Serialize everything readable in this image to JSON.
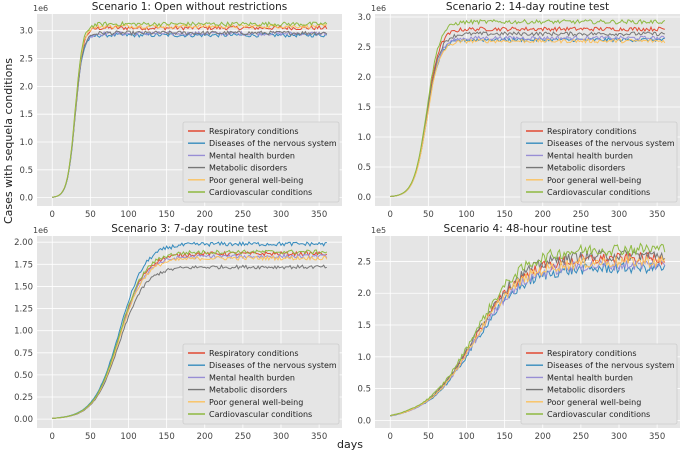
{
  "figure": {
    "ylabel": "Cases with sequela conditions",
    "xlabel": "days"
  },
  "colors": {
    "Respiratory conditions": "#e24a33",
    "Diseases of the nervous system": "#348abd",
    "Mental health burden": "#988ed5",
    "Metabolic disorders": "#777777",
    "Poor general well-being": "#fbc15e",
    "Cardiovascular conditions": "#8eba42"
  },
  "chart_data": [
    {
      "type": "line",
      "title": "Scenario 1: Open without restrictions",
      "exponent": "1e6",
      "x_range": [
        0,
        360
      ],
      "xticks": [
        0,
        50,
        100,
        150,
        200,
        250,
        300,
        350
      ],
      "yticks": [
        0.0,
        0.5,
        1.0,
        1.5,
        2.0,
        2.5,
        3.0
      ],
      "ytick_labels": [
        "0.0",
        "0.5",
        "1.0",
        "1.5",
        "2.0",
        "2.5",
        "3.0"
      ],
      "ylim": [
        -0.15,
        3.3
      ],
      "legend_position": "lower-right",
      "curve": {
        "midpoint_day": 30,
        "growth_rate": 0.2,
        "noise": 0.012
      },
      "series": [
        {
          "name": "Respiratory conditions",
          "plateau": 3.05
        },
        {
          "name": "Diseases of the nervous system",
          "plateau": 2.92
        },
        {
          "name": "Mental health burden",
          "plateau": 2.95
        },
        {
          "name": "Metabolic disorders",
          "plateau": 2.96
        },
        {
          "name": "Poor general well-being",
          "plateau": 3.08
        },
        {
          "name": "Cardiovascular conditions",
          "plateau": 3.12
        }
      ]
    },
    {
      "type": "line",
      "title": "Scenario 2: 14-day routine test",
      "exponent": "1e6",
      "x_range": [
        0,
        360
      ],
      "xticks": [
        0,
        50,
        100,
        150,
        200,
        250,
        300,
        350
      ],
      "yticks": [
        0.0,
        0.5,
        1.0,
        1.5,
        2.0,
        2.5,
        3.0
      ],
      "ytick_labels": [
        "0.0",
        "0.5",
        "1.0",
        "1.5",
        "2.0",
        "2.5",
        "3.0"
      ],
      "ylim": [
        -0.15,
        3.05
      ],
      "legend_position": "lower-right",
      "curve": {
        "midpoint_day": 48,
        "growth_rate": 0.12,
        "noise": 0.012
      },
      "series": [
        {
          "name": "Respiratory conditions",
          "plateau": 2.8
        },
        {
          "name": "Diseases of the nervous system",
          "plateau": 2.62
        },
        {
          "name": "Mental health burden",
          "plateau": 2.65
        },
        {
          "name": "Metabolic disorders",
          "plateau": 2.72
        },
        {
          "name": "Poor general well-being",
          "plateau": 2.6
        },
        {
          "name": "Cardiovascular conditions",
          "plateau": 2.92
        }
      ]
    },
    {
      "type": "line",
      "title": "Scenario 3: 7-day routine test",
      "exponent": "1e6",
      "x_range": [
        0,
        360
      ],
      "xticks": [
        0,
        50,
        100,
        150,
        200,
        250,
        300,
        350
      ],
      "yticks": [
        0.0,
        0.25,
        0.5,
        0.75,
        1.0,
        1.25,
        1.5,
        1.75,
        2.0
      ],
      "ytick_labels": [
        "0.00",
        "0.25",
        "0.50",
        "0.75",
        "1.00",
        "1.25",
        "1.50",
        "1.75",
        "2.00"
      ],
      "ylim": [
        -0.1,
        2.07
      ],
      "legend_position": "lower-right",
      "curve": {
        "midpoint_day": 88,
        "growth_rate": 0.06,
        "noise": 0.012
      },
      "series": [
        {
          "name": "Respiratory conditions",
          "plateau": 1.87
        },
        {
          "name": "Diseases of the nervous system",
          "plateau": 1.98
        },
        {
          "name": "Mental health burden",
          "plateau": 1.84
        },
        {
          "name": "Metabolic disorders",
          "plateau": 1.72
        },
        {
          "name": "Poor general well-being",
          "plateau": 1.82
        },
        {
          "name": "Cardiovascular conditions",
          "plateau": 1.89
        }
      ]
    },
    {
      "type": "line",
      "title": "Scenario 4: 48-hour routine test",
      "exponent": "1e5",
      "x_range": [
        0,
        360
      ],
      "xticks": [
        0,
        50,
        100,
        150,
        200,
        250,
        300,
        350
      ],
      "yticks": [
        0.0,
        0.5,
        1.0,
        1.5,
        2.0,
        2.5
      ],
      "ytick_labels": [
        "0.0",
        "0.5",
        "1.0",
        "1.5",
        "2.0",
        "2.5"
      ],
      "ylim": [
        -0.12,
        2.9
      ],
      "legend_position": "lower-right",
      "curve": {
        "midpoint_day": 110,
        "growth_rate": 0.032,
        "noise": 0.035
      },
      "series": [
        {
          "name": "Respiratory conditions",
          "plateau": 2.55
        },
        {
          "name": "Diseases of the nervous system",
          "plateau": 2.4
        },
        {
          "name": "Mental health burden",
          "plateau": 2.45
        },
        {
          "name": "Metabolic disorders",
          "plateau": 2.6
        },
        {
          "name": "Poor general well-being",
          "plateau": 2.5
        },
        {
          "name": "Cardiovascular conditions",
          "plateau": 2.7
        }
      ]
    }
  ]
}
